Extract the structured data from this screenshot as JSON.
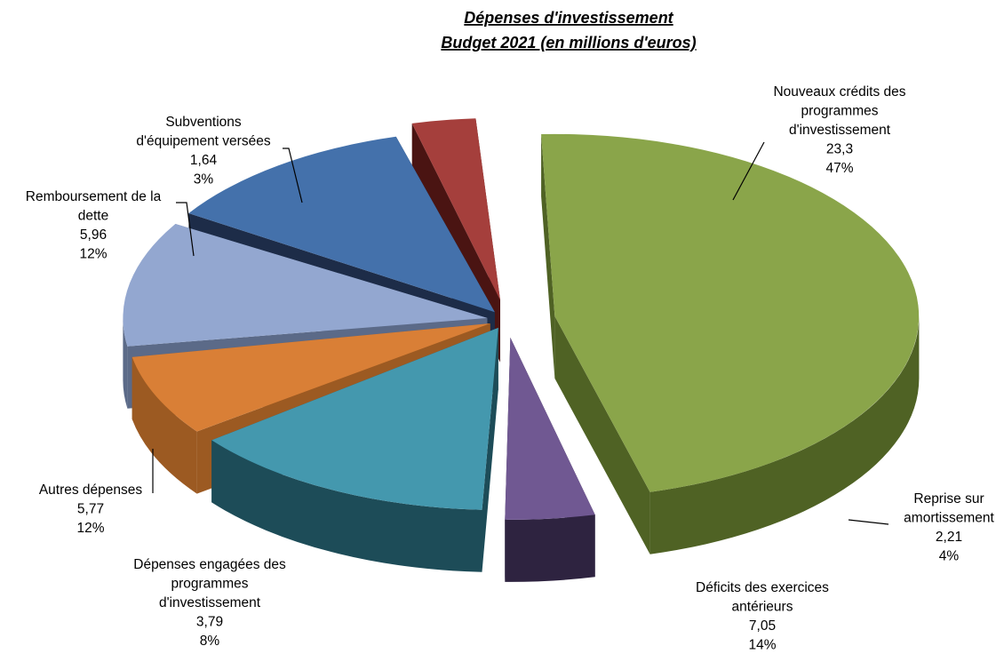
{
  "chart_data": {
    "type": "pie",
    "style": "3d-exploded",
    "title": [
      "Dépenses  d'investissement",
      "Budget  2021 (en millions  d'euros)"
    ],
    "unit": "millions d'euros",
    "legend": "none",
    "slices": [
      {
        "label": [
          "Nouveaux crédits des",
          "programmes",
          "d'investissement"
        ],
        "value": 23.3,
        "value_label": "23,3",
        "percent_label": "47%",
        "top_color": "#8aa54a",
        "side_color": "#4f6224"
      },
      {
        "label": [
          "Reprise sur",
          "amortissement"
        ],
        "value": 2.21,
        "value_label": "2,21",
        "percent_label": "4%",
        "top_color": "#705892",
        "side_color": "#2e2340"
      },
      {
        "label": [
          "Déficits des exercices",
          "antérieurs"
        ],
        "value": 7.05,
        "value_label": "7,05",
        "percent_label": "14%",
        "top_color": "#4498ae",
        "side_color": "#1d4c58"
      },
      {
        "label": [
          "Dépenses engagées des",
          "programmes",
          "d'investissement"
        ],
        "value": 3.79,
        "value_label": "3,79",
        "percent_label": "8%",
        "top_color": "#d97f36",
        "side_color": "#9c5a22"
      },
      {
        "label": [
          "Autres dépenses"
        ],
        "value": 5.77,
        "value_label": "5,77",
        "percent_label": "12%",
        "top_color": "#93a7d0",
        "side_color": "#5b6a88"
      },
      {
        "label": [
          "Remboursement de la",
          "dette"
        ],
        "value": 5.96,
        "value_label": "5,96",
        "percent_label": "12%",
        "top_color": "#4471ab",
        "side_color": "#1d2c48"
      },
      {
        "label": [
          "Subventions",
          "d'équipement versées"
        ],
        "value": 1.64,
        "value_label": "1,64",
        "percent_label": "3%",
        "top_color": "#a53f3c",
        "side_color": "#4a1412"
      }
    ]
  }
}
